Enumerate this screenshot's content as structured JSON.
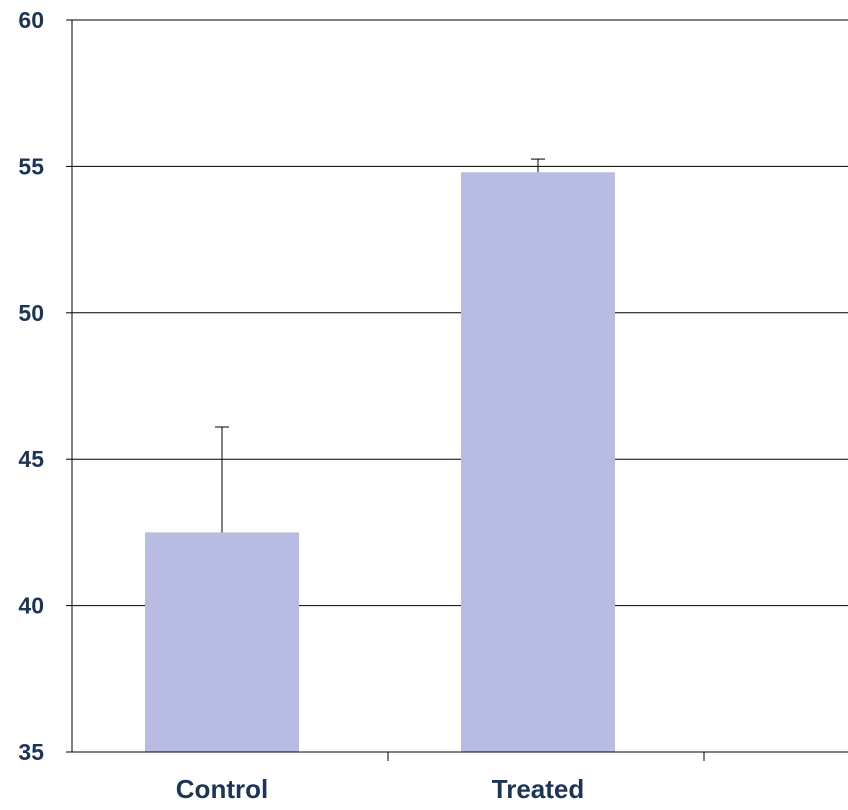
{
  "chart_data": {
    "type": "bar",
    "categories": [
      "Control",
      "Treated"
    ],
    "values": [
      42.5,
      54.8
    ],
    "error_bars": [
      3.6,
      0.45
    ],
    "title": "",
    "xlabel": "",
    "ylabel": "",
    "ylim": [
      35,
      60
    ],
    "yticks": [
      "35",
      "40",
      "45",
      "50",
      "55",
      "60"
    ],
    "grid": true,
    "bar_color": "#b8bbe2",
    "axis_color": "#000000",
    "label_color": "#1c3557"
  }
}
